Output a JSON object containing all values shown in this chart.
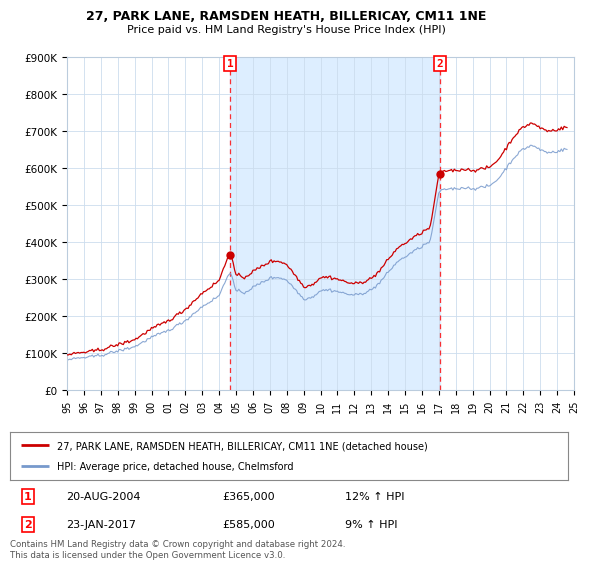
{
  "title_line1": "27, PARK LANE, RAMSDEN HEATH, BILLERICAY, CM11 1NE",
  "title_line2": "Price paid vs. HM Land Registry's House Price Index (HPI)",
  "background_color": "#ffffff",
  "plot_bg_color": "#ffffff",
  "grid_color": "#ccddee",
  "line1_color": "#cc0000",
  "line2_color": "#7799cc",
  "shade_color": "#ddeeff",
  "ylim": [
    0,
    900000
  ],
  "yticks": [
    0,
    100000,
    200000,
    300000,
    400000,
    500000,
    600000,
    700000,
    800000,
    900000
  ],
  "ytick_labels": [
    "£0",
    "£100K",
    "£200K",
    "£300K",
    "£400K",
    "£500K",
    "£600K",
    "£700K",
    "£800K",
    "£900K"
  ],
  "sale1_date": 2004.64,
  "sale1_price": 365000,
  "sale2_date": 2017.07,
  "sale2_price": 585000,
  "legend_line1": "27, PARK LANE, RAMSDEN HEATH, BILLERICAY, CM11 1NE (detached house)",
  "legend_line2": "HPI: Average price, detached house, Chelmsford",
  "annotation1_date": "20-AUG-2004",
  "annotation1_price": "£365,000",
  "annotation1_hpi": "12% ↑ HPI",
  "annotation2_date": "23-JAN-2017",
  "annotation2_price": "£585,000",
  "annotation2_hpi": "9% ↑ HPI",
  "footer": "Contains HM Land Registry data © Crown copyright and database right 2024.\nThis data is licensed under the Open Government Licence v3.0.",
  "xlim_start": 1995.0,
  "xlim_end": 2025.0
}
